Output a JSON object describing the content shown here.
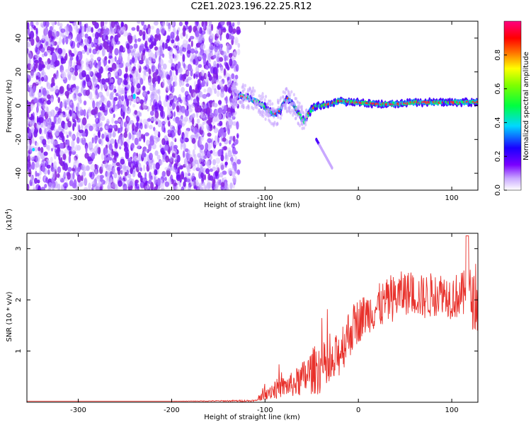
{
  "title": "C2E1.2023.196.22.25.R12",
  "chart_data": [
    {
      "type": "heatmap",
      "xlabel": "Height of straight line (km)",
      "ylabel": "Frequency (Hz)",
      "xlim": [
        -355,
        128
      ],
      "ylim": [
        -50,
        50
      ],
      "xticks": [
        -300,
        -200,
        -100,
        0,
        100
      ],
      "yticks": [
        -40,
        -20,
        0,
        20,
        40
      ],
      "noise_region_x": [
        -355,
        -128
      ],
      "signal_track": {
        "x": [
          -128,
          -120,
          -110,
          -102,
          -96,
          -90,
          -84,
          -80,
          -75,
          -70,
          -66,
          -62,
          -58,
          -55,
          -50,
          -45,
          -40,
          -30,
          -20,
          -10,
          0,
          20,
          40,
          60,
          80,
          100,
          128
        ],
        "y": [
          6,
          5,
          3,
          0,
          -3,
          -5,
          -3,
          2,
          4,
          1,
          -3,
          -6,
          -10,
          -6,
          -2,
          0,
          0,
          1,
          3,
          2,
          2,
          1,
          1,
          2,
          2,
          2,
          2
        ]
      },
      "colorbar": {
        "label": "Normalized spectral amplitude",
        "range": [
          0.0,
          1.0
        ],
        "ticks": [
          "0.0",
          "0.2",
          "0.4",
          "0.6",
          "0.8"
        ]
      }
    },
    {
      "type": "line",
      "xlabel": "Height of straight line (km)",
      "ylabel": "SNR (10 * v/v)",
      "yscale_label": "(x10",
      "yscale_exp": "4",
      "yscale_close": ")",
      "xlim": [
        -355,
        128
      ],
      "ylim": [
        0,
        3.3
      ],
      "xticks": [
        -300,
        -200,
        -100,
        0,
        100
      ],
      "yticks": [
        1,
        2,
        3
      ],
      "series": [
        {
          "color": "#e8302a",
          "x": [
            -355,
            -300,
            -200,
            -110,
            -100,
            -90,
            -80,
            -70,
            -60,
            -50,
            -40,
            -30,
            -20,
            -10,
            0,
            10,
            20,
            30,
            40,
            50,
            60,
            70,
            80,
            90,
            100,
            110,
            120,
            128
          ],
          "y": [
            0.02,
            0.02,
            0.02,
            0.03,
            0.2,
            0.25,
            0.3,
            0.35,
            0.45,
            0.6,
            0.7,
            0.6,
            1.0,
            1.35,
            1.6,
            1.75,
            1.85,
            1.95,
            2.05,
            2.15,
            2.1,
            2.05,
            2.1,
            2.15,
            2.05,
            2.1,
            2.05,
            1.85
          ],
          "spread": [
            0,
            0,
            0,
            0.02,
            0.15,
            0.2,
            0.2,
            0.25,
            0.35,
            0.45,
            0.55,
            0.45,
            0.5,
            0.5,
            0.45,
            0.4,
            0.45,
            0.45,
            0.45,
            0.45,
            0.4,
            0.45,
            0.45,
            0.4,
            0.45,
            0.45,
            0.6,
            0.5
          ]
        }
      ]
    }
  ]
}
